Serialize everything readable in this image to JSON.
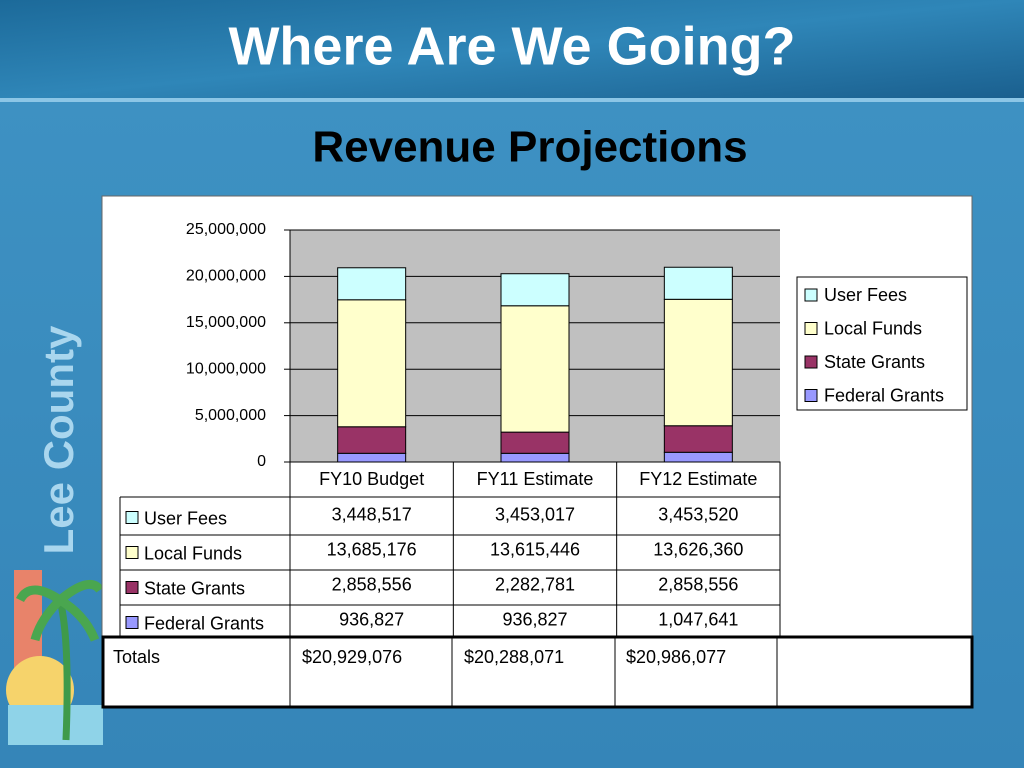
{
  "slide_title": "Where Are We Going?",
  "sidebar_text": "Lee County",
  "chart_data": {
    "type": "stacked_bar",
    "title": "Revenue Projections",
    "categories": [
      "FY10 Budget",
      "FY11 Estimate",
      "FY12 Estimate"
    ],
    "series": [
      {
        "name": "User Fees",
        "color": "#ccffff",
        "values": [
          3448517,
          3453017,
          3453520
        ],
        "value_labels": [
          "3,448,517",
          "3,453,017",
          "3,453,520"
        ]
      },
      {
        "name": "Local Funds",
        "color": "#ffffcc",
        "values": [
          13685176,
          13615446,
          13626360
        ],
        "value_labels": [
          "13,685,176",
          "13,615,446",
          "13,626,360"
        ]
      },
      {
        "name": "State Grants",
        "color": "#993366",
        "values": [
          2858556,
          2282781,
          2858556
        ],
        "value_labels": [
          "2,858,556",
          "2,282,781",
          "2,858,556"
        ]
      },
      {
        "name": "Federal Grants",
        "color": "#9999ff",
        "values": [
          936827,
          936827,
          1047641
        ],
        "value_labels": [
          "936,827",
          "936,827",
          "1,047,641"
        ]
      }
    ],
    "ylim": [
      0,
      25000000
    ],
    "yticks": [
      0,
      {
        "value": 5000000,
        "label": "5,000,000"
      },
      {
        "value": 10000000,
        "label": "10,000,000"
      },
      {
        "value": 15000000,
        "label": "15,000,000"
      },
      {
        "value": 20000000,
        "label": "20,000,000"
      },
      {
        "value": 25000000,
        "label": "25,000,000"
      }
    ],
    "grid": true,
    "legend": "right",
    "totals": {
      "label": "Totals",
      "values": [
        "$20,929,076",
        "$20,288,071",
        "$20,986,077"
      ]
    }
  }
}
